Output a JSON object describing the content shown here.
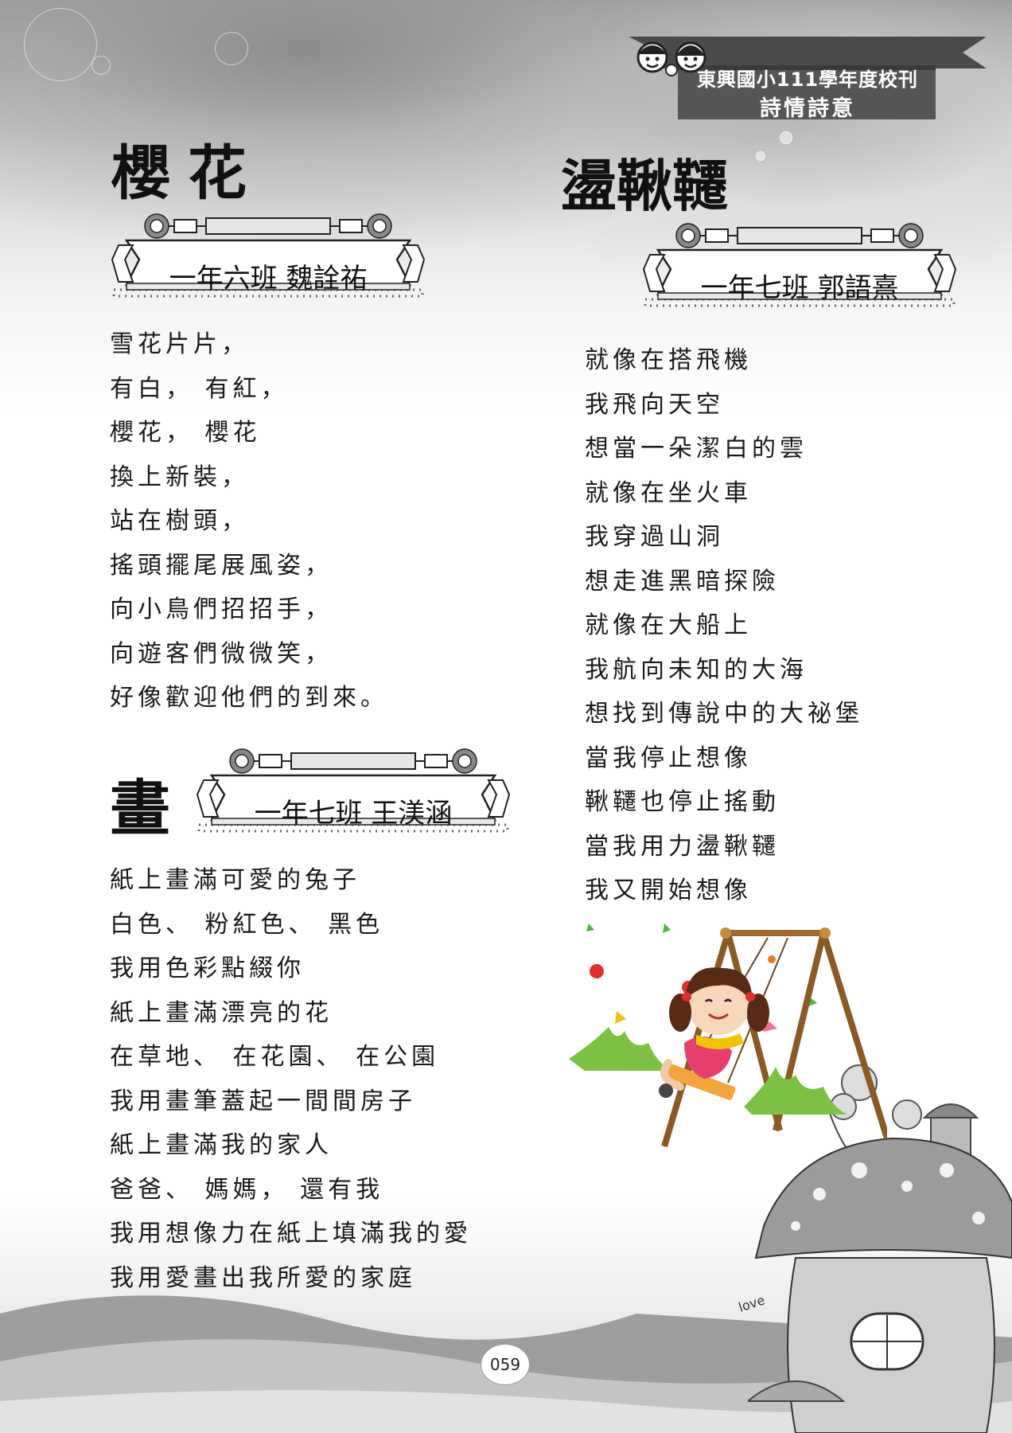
{
  "header": {
    "school_line": "東興國小111學年度校刊",
    "section": "詩情詩意"
  },
  "poems": [
    {
      "title": "櫻花",
      "author": "一年六班  魏詮祐",
      "lines": [
        "雪花片片，",
        "有白， 有紅，",
        "櫻花， 櫻花",
        "換上新裝，",
        "站在樹頭，",
        "搖頭擺尾展風姿，",
        "向小鳥們招招手，",
        "向遊客們微微笑，",
        "好像歡迎他們的到來。"
      ]
    },
    {
      "title": "盪鞦韆",
      "author": "一年七班  郭語熹",
      "lines": [
        "就像在搭飛機",
        "我飛向天空",
        "想當一朵潔白的雲",
        "就像在坐火車",
        "我穿過山洞",
        "想走進黑暗探險",
        "就像在大船上",
        "我航向未知的大海",
        "想找到傳說中的大祕堡",
        "當我停止想像",
        "鞦韆也停止搖動",
        "當我用力盪鞦韆",
        "我又開始想像"
      ]
    },
    {
      "title": "畫",
      "author": "一年七班  王渼涵",
      "lines": [
        "紙上畫滿可愛的兔子",
        "白色、 粉紅色、 黑色",
        "我用色彩點綴你",
        "紙上畫滿漂亮的花",
        "在草地、 在花園、 在公園",
        "我用畫筆蓋起一間間房子",
        "紙上畫滿我的家人",
        "爸爸、 媽媽， 還有我",
        "我用想像力在紙上填滿我的愛",
        "我用愛畫出我所愛的家庭"
      ]
    }
  ],
  "page_number": "059",
  "illustration_text": "love"
}
